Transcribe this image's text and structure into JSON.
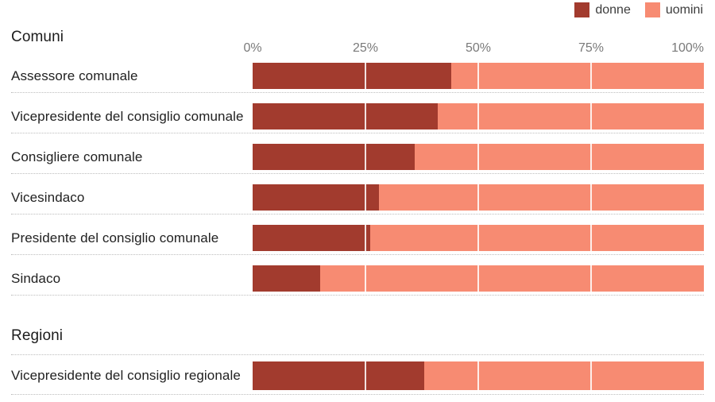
{
  "legend": {
    "items": [
      {
        "label": "donne",
        "color": "#a23b2e"
      },
      {
        "label": "uomini",
        "color": "#f78b72"
      }
    ]
  },
  "axis": {
    "ticks": [
      "0%",
      "25%",
      "50%",
      "75%",
      "100%"
    ],
    "positions": [
      0,
      25,
      50,
      75,
      100
    ]
  },
  "sections": [
    {
      "title": "Comuni",
      "rows": [
        {
          "label": "Assessore comunale",
          "donne": 44,
          "uomini": 56
        },
        {
          "label": "Vicepresidente del consiglio comunale",
          "donne": 41,
          "uomini": 59
        },
        {
          "label": "Consigliere comunale",
          "donne": 36,
          "uomini": 64
        },
        {
          "label": "Vicesindaco",
          "donne": 28,
          "uomini": 72
        },
        {
          "label": "Presidente del consiglio comunale",
          "donne": 26,
          "uomini": 74
        },
        {
          "label": "Sindaco",
          "donne": 15,
          "uomini": 85
        }
      ]
    },
    {
      "title": "Regioni",
      "rows": [
        {
          "label": "Vicepresidente del consiglio regionale",
          "donne": 38,
          "uomini": 62
        }
      ]
    }
  ],
  "chart_data": {
    "type": "bar",
    "orientation": "horizontal",
    "stacked": true,
    "unit": "percent",
    "xlim": [
      0,
      100
    ],
    "x_ticks": [
      "0%",
      "25%",
      "50%",
      "75%",
      "100%"
    ],
    "grid": true,
    "legend_position": "top-right",
    "legend": [
      "donne",
      "uomini"
    ],
    "colors": {
      "donne": "#a23b2e",
      "uomini": "#f78b72"
    },
    "groups": [
      {
        "title": "Comuni",
        "categories": [
          "Assessore comunale",
          "Vicepresidente del consiglio comunale",
          "Consigliere comunale",
          "Vicesindaco",
          "Presidente del consiglio comunale",
          "Sindaco"
        ],
        "series": [
          {
            "name": "donne",
            "values": [
              44,
              41,
              36,
              28,
              26,
              15
            ]
          },
          {
            "name": "uomini",
            "values": [
              56,
              59,
              64,
              72,
              74,
              85
            ]
          }
        ]
      },
      {
        "title": "Regioni",
        "categories": [
          "Vicepresidente del consiglio regionale"
        ],
        "series": [
          {
            "name": "donne",
            "values": [
              38
            ]
          },
          {
            "name": "uomini",
            "values": [
              62
            ]
          }
        ]
      }
    ]
  }
}
